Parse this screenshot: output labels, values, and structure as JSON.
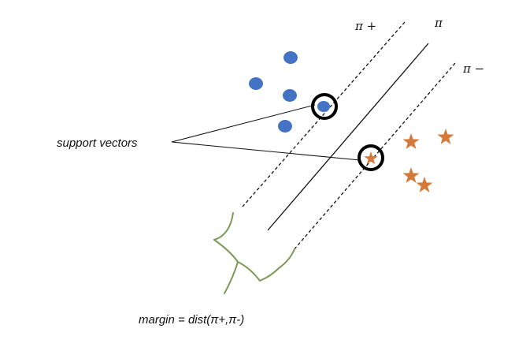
{
  "labels": {
    "pi_plus": "π +",
    "pi": "π",
    "pi_minus": "π −",
    "support_vectors": "support vectors",
    "margin": "margin = dist(π+,π-)"
  },
  "colors": {
    "positive_class": "#4472c4",
    "negative_class": "#d47a3a",
    "lines": "#111111",
    "margin_brace": "#7a9a55"
  },
  "icons": {
    "positive_points": "filled-circle",
    "negative_points": "star",
    "support_vector_marker": "ring"
  }
}
